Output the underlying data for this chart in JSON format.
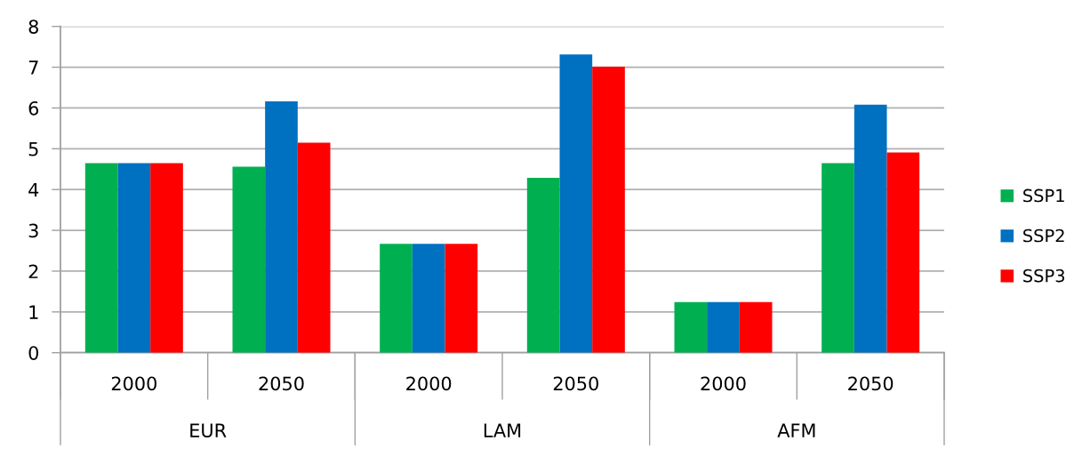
{
  "chart_data": {
    "type": "bar",
    "categories": [
      "2000",
      "2050",
      "2000",
      "2050",
      "2000",
      "2050"
    ],
    "annotations": [
      "EUR",
      "LAM",
      "AFM"
    ],
    "series": [
      {
        "name": "SSP1",
        "color": "#00b050",
        "values": [
          4.65,
          4.56,
          2.67,
          4.29,
          1.24,
          4.65
        ]
      },
      {
        "name": "SSP2",
        "color": "#0070c0",
        "values": [
          4.65,
          6.16,
          2.67,
          7.31,
          1.24,
          6.08
        ]
      },
      {
        "name": "SSP3",
        "color": "#ff0000",
        "values": [
          4.65,
          5.15,
          2.67,
          7.01,
          1.24,
          4.91
        ]
      }
    ],
    "ylim": [
      0,
      8
    ],
    "yticks": [
      0,
      1,
      2,
      3,
      4,
      5,
      6,
      7,
      8
    ],
    "grid": "y",
    "legend": "right"
  }
}
